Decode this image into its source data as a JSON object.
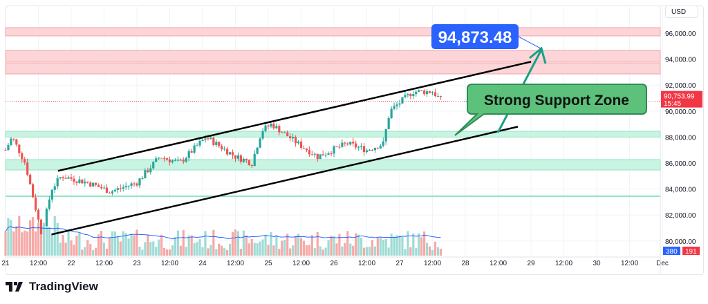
{
  "currency_button": "USD",
  "brand": "TradingView",
  "chart_data": {
    "type": "candlestick",
    "y_axis": {
      "range": [
        79000,
        97000
      ],
      "ticks": [
        "96,000.00",
        "94,000.00",
        "92,000.00",
        "90,000.00",
        "88,000.00",
        "86,000.00",
        "84,000.00",
        "82,000.00",
        "80,000.00"
      ],
      "tick_values": [
        96000,
        94000,
        92000,
        90000,
        88000,
        86000,
        84000,
        82000,
        80000
      ]
    },
    "x_axis": {
      "ticks": [
        "21",
        "12:00",
        "22",
        "12:00",
        "23",
        "12:00",
        "24",
        "12:00",
        "25",
        "12:00",
        "26",
        "12:00",
        "27",
        "12:00",
        "28",
        "12:00",
        "29",
        "12:00",
        "30",
        "12:00",
        "Dec"
      ]
    },
    "price_path": [
      [
        21.0,
        87000
      ],
      [
        21.1,
        88000
      ],
      [
        21.3,
        86000
      ],
      [
        21.55,
        80500
      ],
      [
        21.7,
        84000
      ],
      [
        21.85,
        85000
      ],
      [
        22.25,
        84500
      ],
      [
        22.6,
        83800
      ],
      [
        23.0,
        84500
      ],
      [
        23.35,
        86500
      ],
      [
        23.65,
        86000
      ],
      [
        24.05,
        88000
      ],
      [
        24.5,
        86500
      ],
      [
        24.75,
        86000
      ],
      [
        24.9,
        88500
      ],
      [
        25.05,
        89000
      ],
      [
        25.45,
        87500
      ],
      [
        25.75,
        86500
      ],
      [
        26.2,
        87500
      ],
      [
        26.5,
        87000
      ],
      [
        26.75,
        87500
      ],
      [
        26.85,
        90000
      ],
      [
        27.2,
        91500
      ],
      [
        27.5,
        91500
      ],
      [
        27.65,
        90750
      ]
    ],
    "last_price": {
      "value": "90,753.99",
      "countdown": "15:45",
      "color": "#f23645"
    },
    "volume_badges": [
      {
        "value": "380",
        "color": "#2962ff"
      },
      {
        "value": "191",
        "color": "#f23645"
      }
    ],
    "resistance_zones": [
      [
        95790,
        96425
      ],
      [
        93820,
        94670
      ],
      [
        92862,
        93713
      ]
    ],
    "support_zones": [
      [
        88000,
        88447
      ],
      [
        85468,
        86266
      ]
    ],
    "support_line": 83447,
    "channel": {
      "upper": [
        [
          21.8,
          85400
        ],
        [
          29.0,
          93800
        ]
      ],
      "lower": [
        [
          21.7,
          80500
        ],
        [
          28.8,
          88800
        ]
      ]
    },
    "annotations": {
      "target_label": "94,873.48",
      "support_label": "Strong Support Zone"
    },
    "colors": {
      "up": "#26a69a",
      "down": "#ef5350",
      "resistance": "#f7a1a6",
      "support": "#8ee6c1",
      "ma": "#2962ff"
    }
  }
}
